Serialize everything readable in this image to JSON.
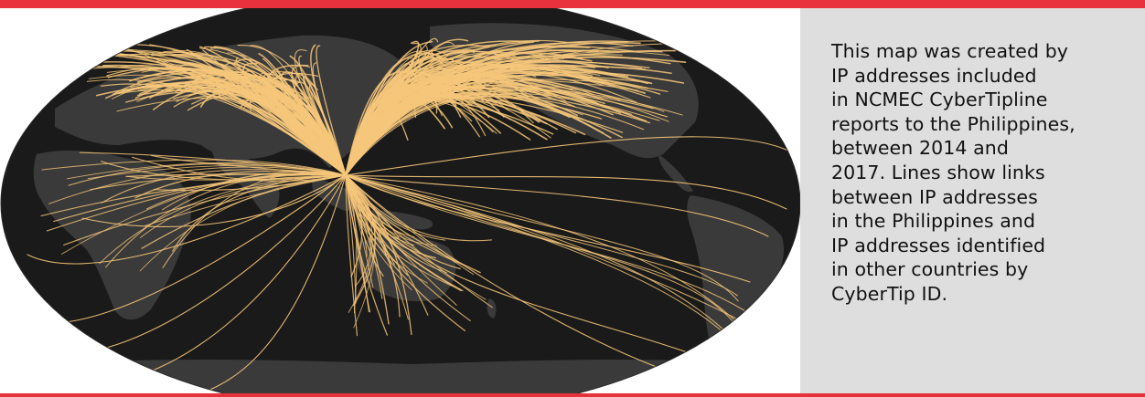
{
  "caption": {
    "text": "This map was created by\nIP addresses included\nin NCMEC CyberTipline\nreports to the Philippines,\nbetween 2014 and\n2017. Lines show links\nbetween IP addresses\nin the Philippines and\nIP addresses identified\nin other countries by\nCyberTip ID."
  },
  "colors": {
    "accent_bar": "#e8313c",
    "ocean": "#1a1a1a",
    "land": "#3a3a3a",
    "flow_lines": "#f6c77a",
    "caption_bg": "#dedede"
  }
}
